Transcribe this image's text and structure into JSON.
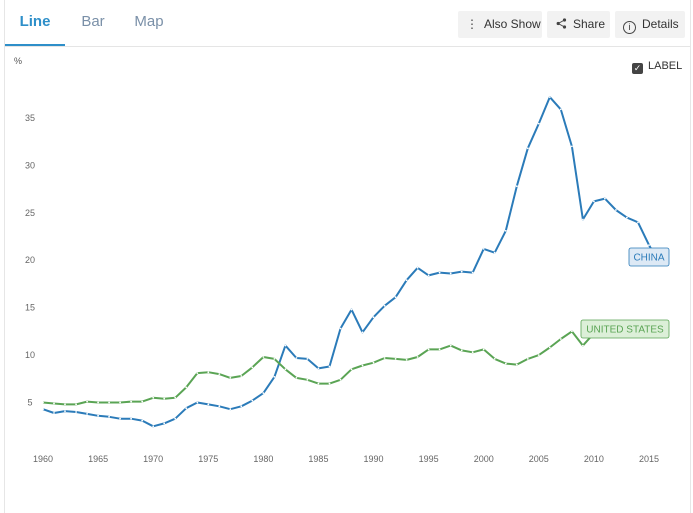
{
  "tabs": [
    {
      "label": "Line",
      "active": true
    },
    {
      "label": "Bar",
      "active": false
    },
    {
      "label": "Map",
      "active": false
    }
  ],
  "toolbar": {
    "also_show": {
      "label": "Also Show",
      "icon": "vertical-dots-icon"
    },
    "share": {
      "label": "Share",
      "icon": "share-icon"
    },
    "details": {
      "label": "Details",
      "icon": "info-icon"
    }
  },
  "label_toggle": {
    "label": "LABEL",
    "checked": true
  },
  "chart_data": {
    "type": "line",
    "title": "",
    "xlabel": "",
    "ylabel": "%",
    "xlim": [
      1960,
      2016
    ],
    "ylim": [
      2,
      39
    ],
    "x_ticks": [
      1960,
      1965,
      1970,
      1975,
      1980,
      1985,
      1990,
      1995,
      2000,
      2005,
      2010,
      2015
    ],
    "y_ticks": [
      5,
      10,
      15,
      20,
      25,
      30,
      35
    ],
    "grid": false,
    "legend": "inline end labels",
    "series": [
      {
        "name": "CHINA",
        "color": "#2b7bb9",
        "label_bg": "#dde9f5",
        "x": [
          1960,
          1961,
          1962,
          1963,
          1964,
          1965,
          1966,
          1967,
          1968,
          1969,
          1970,
          1971,
          1972,
          1973,
          1974,
          1975,
          1976,
          1977,
          1978,
          1979,
          1980,
          1981,
          1982,
          1983,
          1984,
          1985,
          1986,
          1987,
          1988,
          1989,
          1990,
          1991,
          1992,
          1993,
          1994,
          1995,
          1996,
          1997,
          1998,
          1999,
          2000,
          2001,
          2002,
          2003,
          2004,
          2005,
          2006,
          2007,
          2008,
          2009,
          2010,
          2011,
          2012,
          2013,
          2014,
          2015,
          2016
        ],
        "values": [
          4.3,
          3.9,
          4.1,
          4.0,
          3.8,
          3.6,
          3.5,
          3.3,
          3.3,
          3.1,
          2.5,
          2.8,
          3.3,
          4.4,
          5.0,
          4.8,
          4.6,
          4.3,
          4.6,
          5.2,
          6.0,
          7.7,
          11.0,
          9.7,
          9.6,
          8.6,
          8.8,
          12.8,
          14.8,
          12.4,
          14.0,
          15.2,
          16.1,
          17.9,
          19.2,
          18.4,
          18.7,
          18.6,
          18.8,
          18.7,
          21.2,
          20.8,
          23.1,
          27.8,
          31.8,
          34.4,
          37.2,
          35.9,
          32.0,
          24.3,
          26.2,
          26.5,
          25.3,
          24.5,
          24.0,
          21.6,
          19.6
        ]
      },
      {
        "name": "UNITED STATES",
        "color": "#5aa454",
        "label_bg": "#dcefd8",
        "x": [
          1960,
          1961,
          1962,
          1963,
          1964,
          1965,
          1966,
          1967,
          1968,
          1969,
          1970,
          1971,
          1972,
          1973,
          1974,
          1975,
          1976,
          1977,
          1978,
          1979,
          1980,
          1981,
          1982,
          1983,
          1984,
          1985,
          1986,
          1987,
          1988,
          1989,
          1990,
          1991,
          1992,
          1993,
          1994,
          1995,
          1996,
          1997,
          1998,
          1999,
          2000,
          2001,
          2002,
          2003,
          2004,
          2005,
          2006,
          2007,
          2008,
          2009,
          2010,
          2011,
          2012,
          2013,
          2014,
          2015
        ],
        "values": [
          5.0,
          4.9,
          4.8,
          4.8,
          5.1,
          5.0,
          5.0,
          5.0,
          5.1,
          5.1,
          5.5,
          5.4,
          5.5,
          6.6,
          8.1,
          8.2,
          8.0,
          7.6,
          7.8,
          8.7,
          9.8,
          9.6,
          8.5,
          7.6,
          7.4,
          7.0,
          7.0,
          7.4,
          8.5,
          8.9,
          9.2,
          9.7,
          9.6,
          9.5,
          9.8,
          10.6,
          10.6,
          11.0,
          10.5,
          10.3,
          10.6,
          9.6,
          9.1,
          9.0,
          9.6,
          10.0,
          10.8,
          11.7,
          12.5,
          11.0,
          12.3,
          13.6,
          13.6,
          13.6,
          13.5,
          12.5
        ]
      }
    ]
  }
}
